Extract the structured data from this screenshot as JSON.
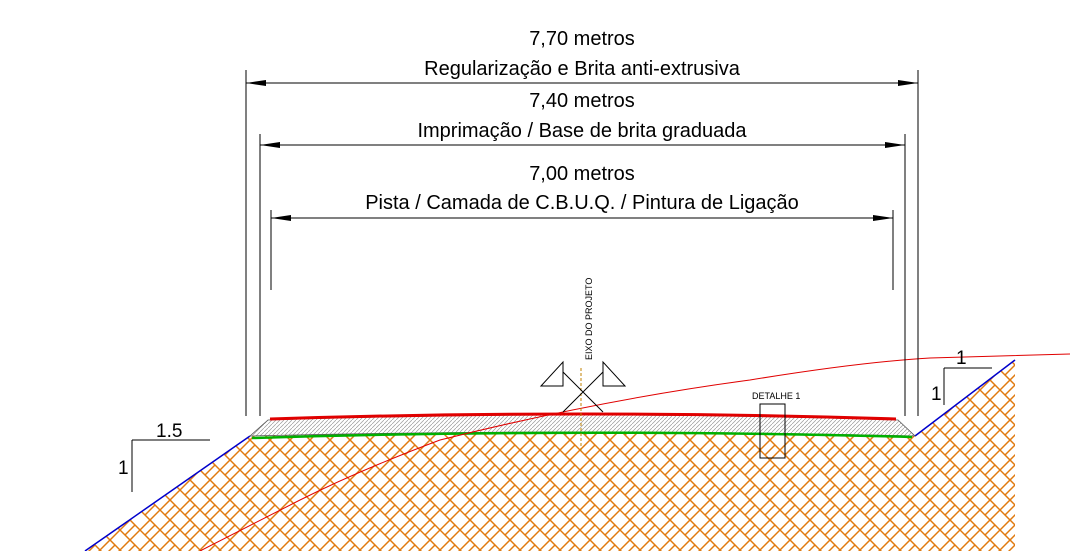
{
  "dimensions": {
    "outer": {
      "value": "7,70 metros",
      "label": "Regularização e Brita anti-extrusiva"
    },
    "middle": {
      "value": "7,40 metros",
      "label": "Imprimação / Base de brita graduada"
    },
    "inner": {
      "value": "7,00 metros",
      "label": "Pista / Camada de C.B.U.Q. / Pintura de Ligação"
    }
  },
  "centerline_label": "EIXO DO PROJETO",
  "detail_label": "DETALHE 1",
  "left_slope": {
    "horizontal": "1.5",
    "vertical": "1"
  },
  "right_slope": {
    "horizontal": "1",
    "vertical": "1"
  },
  "colors": {
    "soil": "#E07A10",
    "asphalt": "#E00000",
    "base": "#8A8A8A",
    "subbase": "#00B000",
    "slope_edge": "#0000CC",
    "terrain": "#E00000"
  }
}
